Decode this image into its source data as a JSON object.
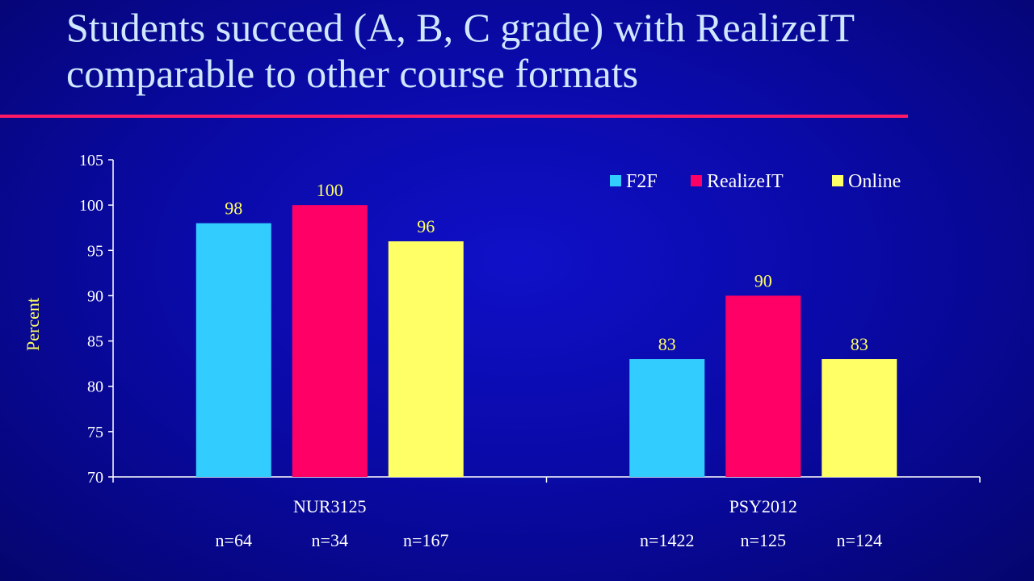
{
  "slide": {
    "title": "Students succeed (A, B, C grade) with RealizeIT comparable to other course formats"
  },
  "chart_data": {
    "type": "bar",
    "title": "",
    "xlabel": "",
    "ylabel": "Percent",
    "ylim": [
      70,
      105
    ],
    "yticks": [
      70,
      75,
      80,
      85,
      90,
      95,
      100,
      105
    ],
    "grid": false,
    "legend_position": "top-right",
    "categories": [
      "NUR3125",
      "PSY2012"
    ],
    "category_sublabels": [
      [
        "n=64",
        "n=34",
        "n=167"
      ],
      [
        "n=1422",
        "n=125",
        "n=124"
      ]
    ],
    "series": [
      {
        "name": "F2F",
        "color": "#33ccff",
        "values": [
          98,
          83
        ]
      },
      {
        "name": "RealizeIT",
        "color": "#ff0066",
        "values": [
          100,
          90
        ]
      },
      {
        "name": "Online",
        "color": "#ffff66",
        "values": [
          96,
          83
        ]
      }
    ],
    "data_labels": true,
    "colors": {
      "axis_text": "#ffffff",
      "data_label": "#ffff66",
      "ylabel": "#ffff66",
      "axis_line": "#ffffff"
    }
  }
}
